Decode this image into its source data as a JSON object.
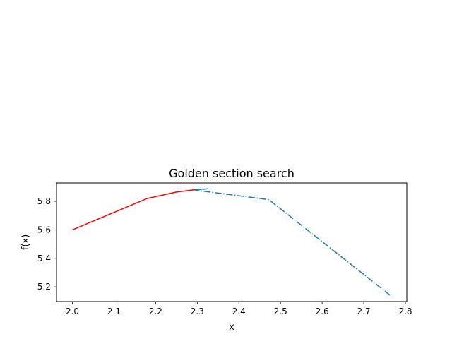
{
  "chart_data": {
    "type": "line",
    "title": "Golden section search",
    "xlabel": "x",
    "ylabel": "f(x)",
    "xlim": [
      1.9618,
      2.8034
    ],
    "ylim": [
      5.0966,
      5.9288
    ],
    "xticks": [
      2.0,
      2.1,
      2.2,
      2.3,
      2.4,
      2.5,
      2.6,
      2.7,
      2.8
    ],
    "xtick_labels": [
      "2.0",
      "2.1",
      "2.2",
      "2.3",
      "2.4",
      "2.5",
      "2.6",
      "2.7",
      "2.8"
    ],
    "yticks": [
      5.2,
      5.4,
      5.6,
      5.8
    ],
    "ytick_labels": [
      "5.2",
      "5.4",
      "5.6",
      "5.8"
    ],
    "grid": false,
    "series": [
      {
        "color": "#ff0000",
        "linestyle": "solid",
        "x": [
          2.0,
          2.18,
          2.25,
          2.295
        ],
        "y": [
          5.6,
          5.82,
          5.865,
          5.882
        ]
      },
      {
        "color": "#1f77b4",
        "linestyle": "dashdot",
        "x": [
          2.295,
          2.325,
          2.295,
          2.472,
          2.765
        ],
        "y": [
          5.882,
          5.888,
          5.878,
          5.812,
          5.137
        ]
      }
    ]
  }
}
